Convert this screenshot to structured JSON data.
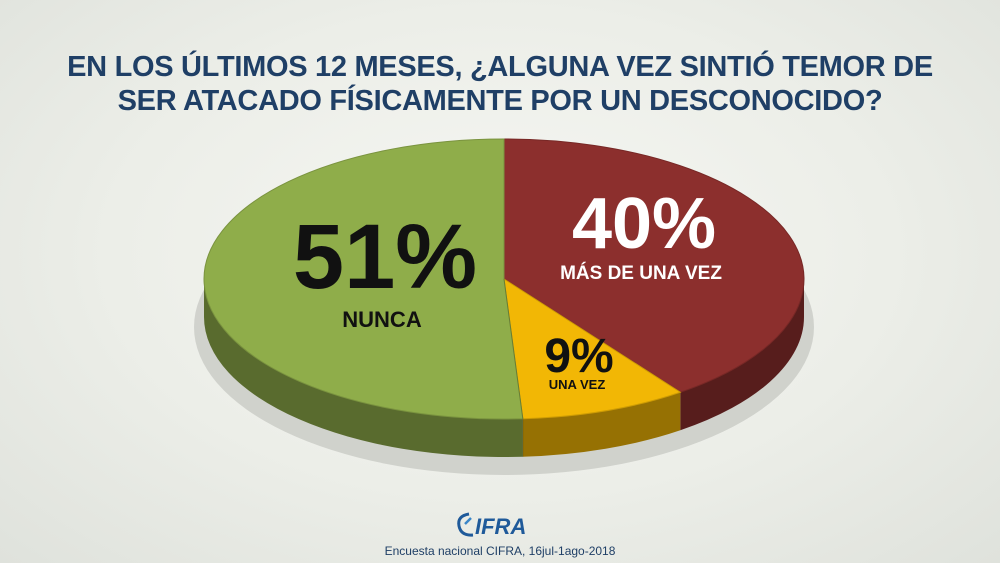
{
  "title_lines": [
    "EN LOS ÚLTIMOS 12 MESES, ¿ALGUNA VEZ SINTIÓ TEMOR DE",
    "SER ATACADO FÍSICAMENTE POR UN DESCONOCIDO?"
  ],
  "chart_data": {
    "type": "pie",
    "title": "EN LOS ÚLTIMOS 12 MESES, ¿ALGUNA VEZ SINTIÓ TEMOR DE SER ATACADO FÍSICAMENTE POR UN DESCONOCIDO?",
    "slices": [
      {
        "label": "NUNCA",
        "value": 51,
        "value_text": "51%",
        "color": "#8fad4a"
      },
      {
        "label": "MÁS DE UNA VEZ",
        "value": 40,
        "value_text": "40%",
        "color": "#8c2f2d"
      },
      {
        "label": "UNA VEZ",
        "value": 9,
        "value_text": "9%",
        "color": "#f2b705"
      }
    ]
  },
  "logo_text": "CIFRA",
  "source": "Encuesta nacional CIFRA, 16jul-1ago-2018"
}
